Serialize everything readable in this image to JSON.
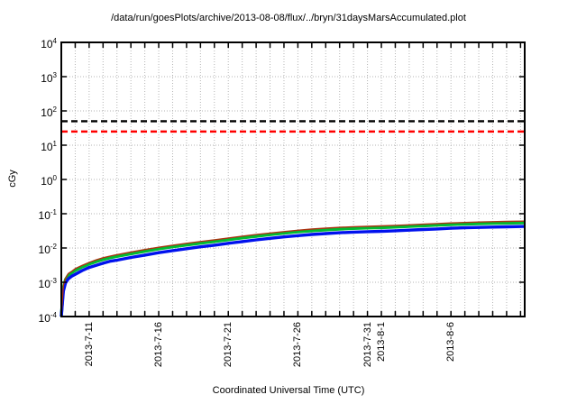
{
  "window": {
    "background": "#ffffff",
    "text_color": "#000000"
  },
  "chart_data": {
    "type": "line",
    "title": "/data/run/goesPlots/archive/2013-08-08/flux/../bryn/31daysMarsAccumulated.plot",
    "xlabel": "Coordinated Universal Time (UTC)",
    "ylabel": "cGy",
    "y_scale": "log10",
    "y_exponent_base": "10",
    "y_tick_exponents": [
      4,
      3,
      2,
      1,
      0,
      -1,
      -2,
      -3,
      -4
    ],
    "ylim": [
      0.0001,
      10000
    ],
    "x_start_date": "2013-7-9",
    "x_span_days": 33.3,
    "x_minor_tick_every_days": 1,
    "x_labeled_ticks": [
      {
        "label": "2013-7-11",
        "day": 2
      },
      {
        "label": "2013-7-16",
        "day": 7
      },
      {
        "label": "2013-7-21",
        "day": 12
      },
      {
        "label": "2013-7-26",
        "day": 17
      },
      {
        "label": "2013-7-31",
        "day": 22
      },
      {
        "label": "2013-8-1",
        "day": 23
      },
      {
        "label": "2013-8-6",
        "day": 28
      }
    ],
    "grid": {
      "show": true,
      "color": "#b5b5b5",
      "style": "dotted"
    },
    "axis_color": "#000000",
    "limit_lines": [
      {
        "name": "upper-dose-limit",
        "value_cgy": 50,
        "color": "#000000",
        "style": "dashed"
      },
      {
        "name": "lower-dose-limit",
        "value_cgy": 25,
        "color": "#ff0000",
        "style": "dashed"
      }
    ],
    "days": [
      0,
      0.15,
      0.3,
      0.5,
      0.75,
      1,
      1.5,
      2,
      2.5,
      3,
      3.5,
      4,
      5,
      6,
      7,
      8,
      9,
      10,
      11,
      12,
      13,
      14,
      15,
      16,
      17,
      18,
      19,
      20,
      21,
      22,
      23,
      24,
      25,
      26,
      27,
      28,
      29,
      30,
      31,
      32,
      33.3
    ],
    "series": [
      {
        "name": "accumulated-dose-thin-red",
        "color": "#aa3311",
        "stroke_width": 1.4,
        "z": 3,
        "values_cgy": [
          0.0001,
          0.0008,
          0.0013,
          0.0018,
          0.0021,
          0.0025,
          0.0031,
          0.0038,
          0.0045,
          0.0052,
          0.0058,
          0.0064,
          0.0076,
          0.009,
          0.0105,
          0.0121,
          0.0137,
          0.0155,
          0.0174,
          0.0196,
          0.0221,
          0.0246,
          0.0274,
          0.0302,
          0.033,
          0.0356,
          0.0379,
          0.0401,
          0.0417,
          0.0429,
          0.0441,
          0.0457,
          0.0476,
          0.0496,
          0.0517,
          0.054,
          0.0557,
          0.0571,
          0.0585,
          0.0596,
          0.061
        ]
      },
      {
        "name": "accumulated-dose-green",
        "color": "#00bb33",
        "stroke_width": 3.4,
        "z": 1,
        "values_cgy": [
          0.0001,
          0.0007,
          0.0012,
          0.0016,
          0.0019,
          0.0022,
          0.0028,
          0.0034,
          0.004,
          0.0046,
          0.0052,
          0.0057,
          0.0068,
          0.008,
          0.0094,
          0.0108,
          0.0122,
          0.0138,
          0.0155,
          0.0175,
          0.0197,
          0.022,
          0.0245,
          0.027,
          0.0295,
          0.0318,
          0.0338,
          0.0358,
          0.0372,
          0.0383,
          0.0394,
          0.0408,
          0.0425,
          0.0443,
          0.0462,
          0.0482,
          0.0497,
          0.051,
          0.0522,
          0.0532,
          0.0545
        ]
      },
      {
        "name": "accumulated-dose-blue",
        "color": "#0011ee",
        "stroke_width": 3.4,
        "z": 2,
        "values_cgy": [
          0.0001,
          0.00055,
          0.00094,
          0.00125,
          0.0015,
          0.0017,
          0.0022,
          0.0027,
          0.0031,
          0.0036,
          0.0041,
          0.0044,
          0.0053,
          0.0062,
          0.0073,
          0.0084,
          0.0095,
          0.0108,
          0.0121,
          0.0137,
          0.0154,
          0.0172,
          0.0191,
          0.0211,
          0.023,
          0.0248,
          0.0264,
          0.0279,
          0.029,
          0.0299,
          0.0307,
          0.0318,
          0.0332,
          0.0346,
          0.036,
          0.0376,
          0.0388,
          0.0398,
          0.0407,
          0.0415,
          0.0425
        ]
      }
    ],
    "legend": {
      "show": false
    }
  }
}
